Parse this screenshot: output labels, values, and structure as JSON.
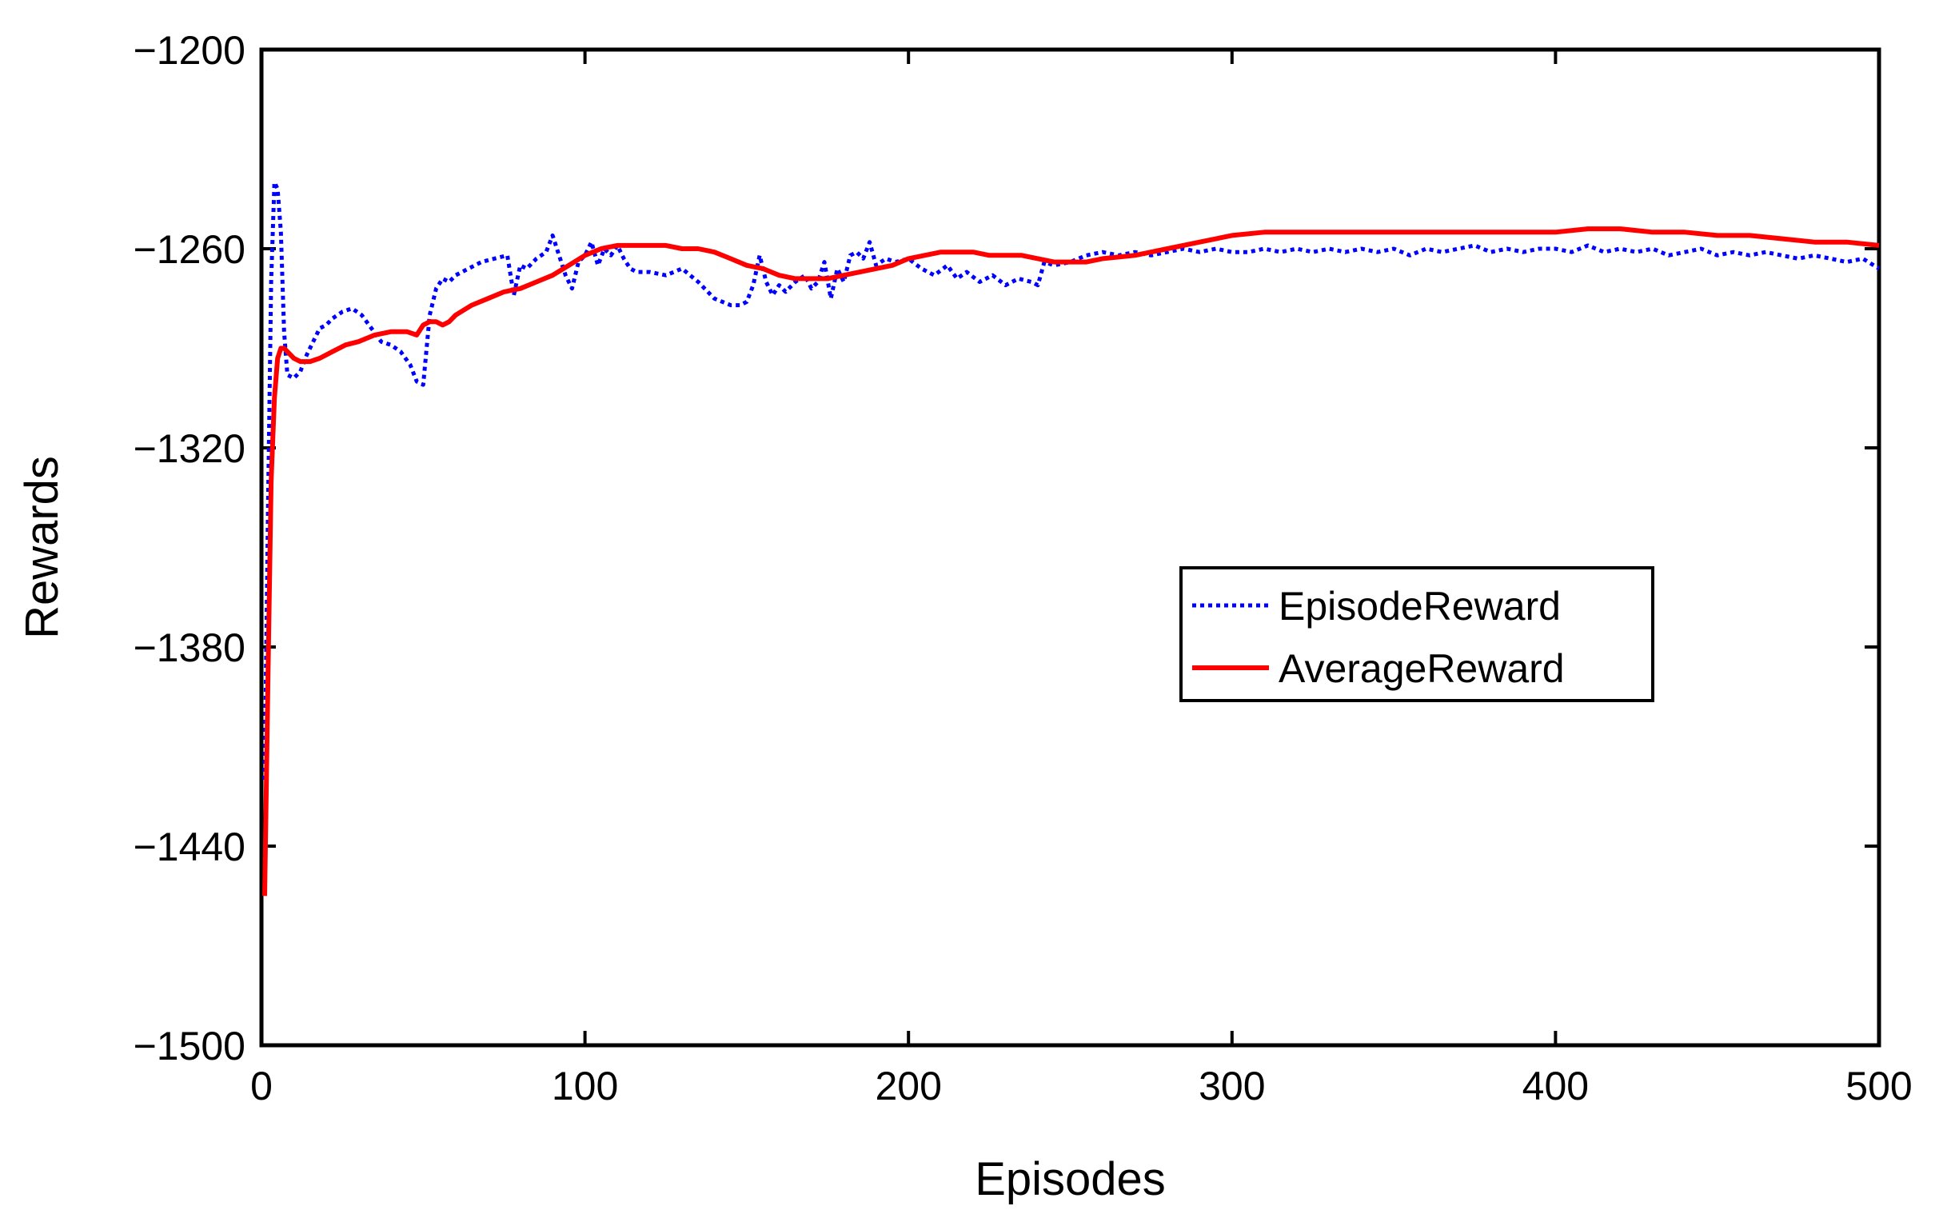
{
  "chart_data": {
    "type": "line",
    "title": "",
    "xlabel": "Episodes",
    "ylabel": "Rewards",
    "xlim": [
      0,
      500
    ],
    "ylim": [
      -1500,
      -1200
    ],
    "xticks": [
      0,
      100,
      200,
      300,
      400,
      500
    ],
    "xtick_labels": [
      "0",
      "100",
      "200",
      "300",
      "400",
      "500"
    ],
    "yticks": [
      -1500,
      -1440,
      -1380,
      -1320,
      -1260,
      -1200
    ],
    "ytick_labels": [
      "−1500",
      "−1440",
      "−1380",
      "−1320",
      "−1260",
      "−1200"
    ],
    "grid": false,
    "legend_position": "center-right",
    "series": [
      {
        "name": "EpisodeReward",
        "color": "#0000ff",
        "style": "dotted",
        "x": [
          1,
          2,
          3,
          4,
          5,
          6,
          7,
          8,
          10,
          12,
          14,
          16,
          18,
          20,
          22,
          25,
          28,
          31,
          34,
          37,
          40,
          43,
          46,
          48,
          50,
          52,
          54,
          56,
          58,
          60,
          64,
          68,
          72,
          76,
          78,
          80,
          82,
          85,
          88,
          90,
          92,
          94,
          96,
          98,
          100,
          102,
          104,
          106,
          108,
          110,
          112,
          114,
          116,
          120,
          125,
          130,
          135,
          140,
          145,
          148,
          150,
          152,
          154,
          156,
          158,
          160,
          162,
          165,
          168,
          170,
          172,
          174,
          176,
          178,
          180,
          182,
          184,
          186,
          188,
          190,
          193,
          196,
          200,
          204,
          208,
          212,
          215,
          218,
          222,
          226,
          230,
          234,
          238,
          240,
          242,
          245,
          250,
          255,
          260,
          265,
          270,
          275,
          280,
          285,
          290,
          295,
          300,
          305,
          310,
          315,
          320,
          325,
          330,
          335,
          340,
          345,
          350,
          355,
          360,
          365,
          370,
          375,
          380,
          385,
          390,
          395,
          400,
          405,
          410,
          415,
          420,
          425,
          430,
          435,
          440,
          445,
          450,
          455,
          460,
          465,
          470,
          475,
          480,
          485,
          490,
          495,
          500
        ],
        "y": [
          -1420,
          -1340,
          -1270,
          -1240,
          -1242,
          -1255,
          -1285,
          -1298,
          -1299,
          -1297,
          -1292,
          -1288,
          -1284,
          -1283,
          -1281,
          -1279,
          -1278,
          -1280,
          -1284,
          -1288,
          -1289,
          -1291,
          -1295,
          -1300,
          -1301,
          -1280,
          -1272,
          -1269,
          -1270,
          -1268,
          -1266,
          -1264,
          -1263,
          -1262,
          -1274,
          -1265,
          -1266,
          -1263,
          -1261,
          -1256,
          -1262,
          -1268,
          -1272,
          -1264,
          -1262,
          -1258,
          -1265,
          -1260,
          -1262,
          -1259,
          -1263,
          -1266,
          -1267,
          -1267,
          -1268,
          -1266,
          -1270,
          -1275,
          -1277,
          -1277,
          -1276,
          -1271,
          -1262,
          -1270,
          -1274,
          -1271,
          -1273,
          -1270,
          -1268,
          -1272,
          -1270,
          -1264,
          -1275,
          -1266,
          -1270,
          -1262,
          -1261,
          -1263,
          -1258,
          -1265,
          -1263,
          -1264,
          -1263,
          -1266,
          -1268,
          -1265,
          -1269,
          -1267,
          -1270,
          -1268,
          -1271,
          -1269,
          -1270,
          -1271,
          -1264,
          -1265,
          -1264,
          -1262,
          -1261,
          -1262,
          -1261,
          -1262,
          -1261,
          -1260,
          -1261,
          -1260,
          -1261,
          -1261,
          -1260,
          -1261,
          -1260,
          -1261,
          -1260,
          -1261,
          -1260,
          -1261,
          -1260,
          -1262,
          -1260,
          -1261,
          -1260,
          -1259,
          -1261,
          -1260,
          -1261,
          -1260,
          -1260,
          -1261,
          -1259,
          -1261,
          -1260,
          -1261,
          -1260,
          -1262,
          -1261,
          -1260,
          -1262,
          -1261,
          -1262,
          -1261,
          -1262,
          -1263,
          -1262,
          -1263,
          -1264,
          -1263,
          -1266
        ]
      },
      {
        "name": "AverageReward",
        "color": "#ff0000",
        "style": "solid",
        "x": [
          1,
          2,
          3,
          4,
          5,
          6,
          7,
          8,
          10,
          12,
          15,
          18,
          22,
          26,
          30,
          35,
          40,
          45,
          48,
          50,
          52,
          54,
          56,
          58,
          60,
          65,
          70,
          75,
          80,
          85,
          90,
          95,
          100,
          105,
          110,
          115,
          120,
          125,
          130,
          135,
          140,
          145,
          150,
          155,
          160,
          165,
          170,
          175,
          180,
          185,
          190,
          195,
          200,
          205,
          210,
          215,
          220,
          225,
          230,
          235,
          240,
          245,
          250,
          255,
          260,
          270,
          280,
          290,
          300,
          310,
          320,
          330,
          340,
          350,
          360,
          370,
          380,
          390,
          400,
          410,
          420,
          430,
          440,
          450,
          460,
          470,
          480,
          490,
          500
        ],
        "y": [
          -1455,
          -1390,
          -1330,
          -1305,
          -1293,
          -1290,
          -1290,
          -1291,
          -1293,
          -1294,
          -1294,
          -1293,
          -1291,
          -1289,
          -1288,
          -1286,
          -1285,
          -1285,
          -1286,
          -1283,
          -1282,
          -1282,
          -1283,
          -1282,
          -1280,
          -1277,
          -1275,
          -1273,
          -1272,
          -1270,
          -1268,
          -1265,
          -1262,
          -1260,
          -1259,
          -1259,
          -1259,
          -1259,
          -1260,
          -1260,
          -1261,
          -1263,
          -1265,
          -1266,
          -1268,
          -1269,
          -1269,
          -1269,
          -1268,
          -1267,
          -1266,
          -1265,
          -1263,
          -1262,
          -1261,
          -1261,
          -1261,
          -1262,
          -1262,
          -1262,
          -1263,
          -1264,
          -1264,
          -1264,
          -1263,
          -1262,
          -1260,
          -1258,
          -1256,
          -1255,
          -1255,
          -1255,
          -1255,
          -1255,
          -1255,
          -1255,
          -1255,
          -1255,
          -1255,
          -1254,
          -1254,
          -1255,
          -1255,
          -1256,
          -1256,
          -1257,
          -1258,
          -1258,
          -1259
        ]
      }
    ]
  }
}
